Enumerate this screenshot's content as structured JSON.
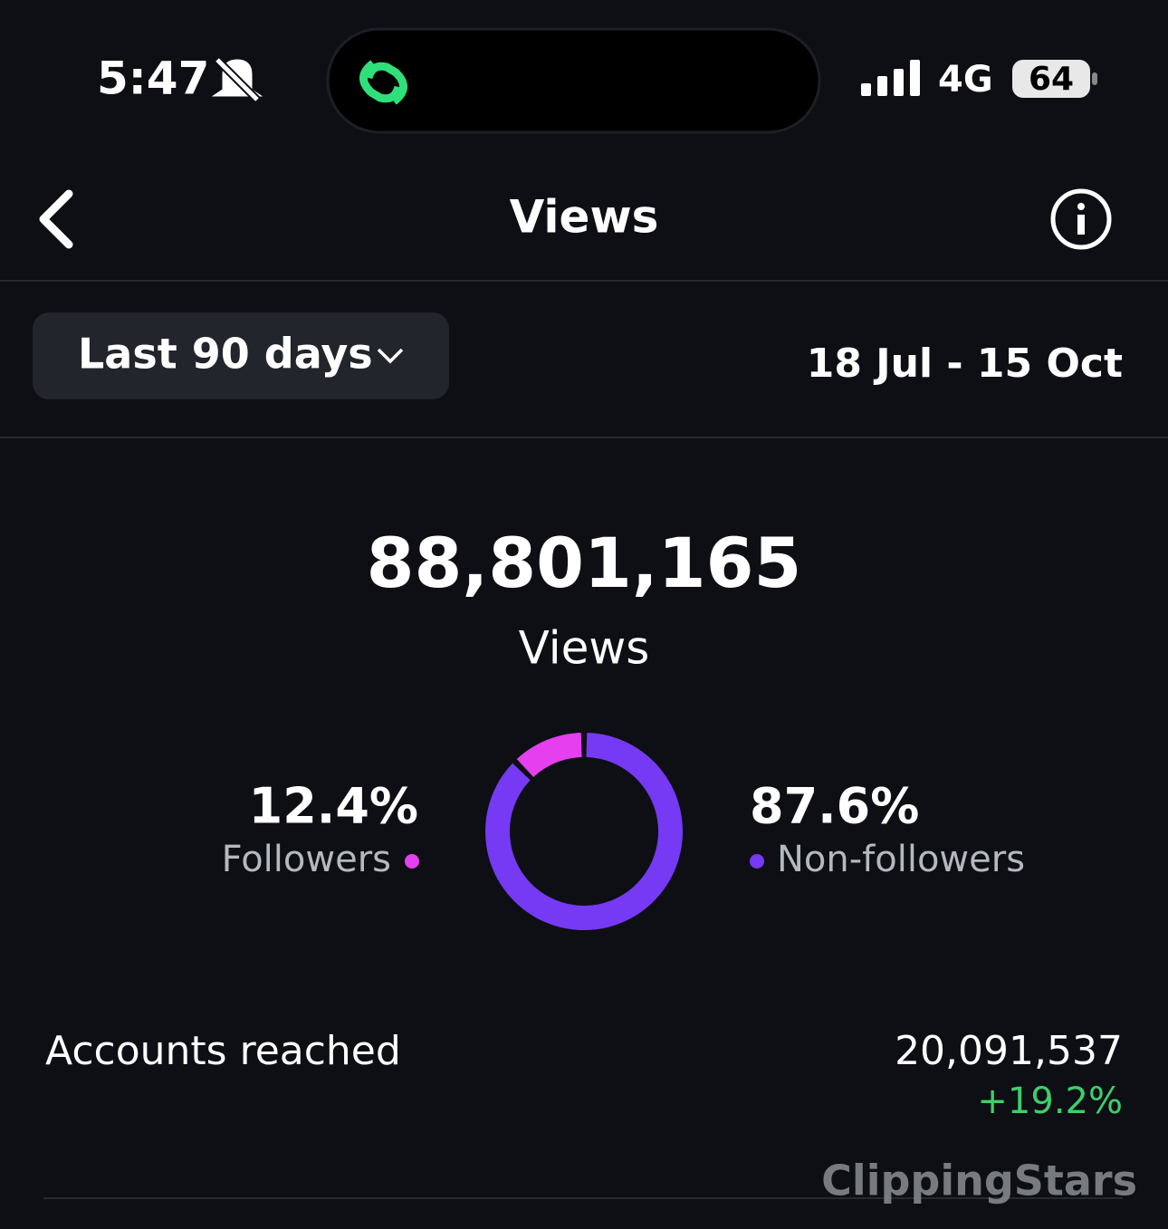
{
  "status_bar": {
    "time": "5:47",
    "network": "4G",
    "battery": "64"
  },
  "header": {
    "title": "Views"
  },
  "filter": {
    "range": "Last 90 days",
    "dates": "18 Jul - 15 Oct"
  },
  "summary": {
    "total": "88,801,165",
    "label": "Views"
  },
  "donut": {
    "type": "pie",
    "categories": [
      "Followers",
      "Non-followers"
    ],
    "values": [
      12.4,
      87.6
    ],
    "value_labels": [
      "12.4%",
      "87.6%"
    ],
    "colors": [
      "#e53fef",
      "#7639f4"
    ]
  },
  "metrics": [
    {
      "label": "Accounts reached",
      "value": "20,091,537",
      "change": "+19.2%"
    }
  ],
  "watermark": "ClippingStars"
}
